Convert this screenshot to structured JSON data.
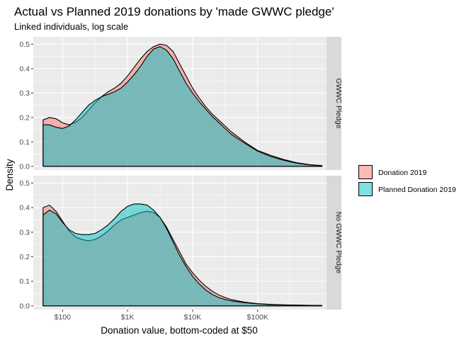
{
  "chart_data": {
    "type": "area",
    "title": "Actual vs Planned 2019 donations by 'made GWWC pledge'",
    "subtitle": "Linked individuals, log scale",
    "xlabel": "Donation value, bottom-coded at $50",
    "ylabel": "Density",
    "x_scale": "log10",
    "xlim_log10": [
      1.55,
      6.06
    ],
    "ylim": [
      -0.015,
      0.53
    ],
    "x_ticks": [
      {
        "log10": 2,
        "label": "$100"
      },
      {
        "log10": 3,
        "label": "$1K"
      },
      {
        "log10": 4,
        "label": "$10K"
      },
      {
        "log10": 5,
        "label": "$100K"
      }
    ],
    "y_ticks": [
      {
        "value": 0.0,
        "label": "0.0"
      },
      {
        "value": 0.1,
        "label": "0.1"
      },
      {
        "value": 0.2,
        "label": "0.2"
      },
      {
        "value": 0.3,
        "label": "0.3"
      },
      {
        "value": 0.4,
        "label": "0.4"
      },
      {
        "value": 0.5,
        "label": "0.5"
      }
    ],
    "legend": {
      "position": "right",
      "entries": [
        {
          "label": "Donation 2019",
          "color": "#F8766D"
        },
        {
          "label": "Planned Donation 2019",
          "color": "#00BFC4"
        }
      ]
    },
    "facets": [
      {
        "label": "GWWC Pledge",
        "series": [
          {
            "name": "Donation 2019",
            "color": "#F8766D",
            "x_log10": [
              1.7,
              1.8,
              1.9,
              2.0,
              2.1,
              2.2,
              2.3,
              2.4,
              2.5,
              2.6,
              2.7,
              2.8,
              2.9,
              3.0,
              3.1,
              3.2,
              3.3,
              3.4,
              3.5,
              3.6,
              3.7,
              3.8,
              3.9,
              4.0,
              4.1,
              4.2,
              4.3,
              4.4,
              4.5,
              4.6,
              4.8,
              5.0,
              5.2,
              5.4,
              5.6,
              5.8,
              5.99
            ],
            "y": [
              0.19,
              0.2,
              0.195,
              0.178,
              0.17,
              0.18,
              0.2,
              0.23,
              0.26,
              0.285,
              0.305,
              0.32,
              0.34,
              0.37,
              0.405,
              0.44,
              0.47,
              0.49,
              0.5,
              0.495,
              0.47,
              0.42,
              0.37,
              0.32,
              0.28,
              0.245,
              0.215,
              0.19,
              0.165,
              0.14,
              0.1,
              0.065,
              0.045,
              0.028,
              0.015,
              0.007,
              0.003
            ]
          },
          {
            "name": "Planned Donation 2019",
            "color": "#00BFC4",
            "x_log10": [
              1.7,
              1.8,
              1.9,
              2.0,
              2.1,
              2.2,
              2.3,
              2.4,
              2.5,
              2.6,
              2.7,
              2.8,
              2.9,
              3.0,
              3.1,
              3.2,
              3.3,
              3.4,
              3.5,
              3.6,
              3.7,
              3.8,
              3.9,
              4.0,
              4.1,
              4.2,
              4.3,
              4.4,
              4.5,
              4.6,
              4.8,
              5.0,
              5.2,
              5.4,
              5.6,
              5.8,
              5.99
            ],
            "y": [
              0.17,
              0.17,
              0.16,
              0.155,
              0.165,
              0.19,
              0.22,
              0.25,
              0.27,
              0.285,
              0.295,
              0.305,
              0.32,
              0.345,
              0.375,
              0.41,
              0.45,
              0.48,
              0.49,
              0.475,
              0.44,
              0.39,
              0.34,
              0.3,
              0.265,
              0.235,
              0.205,
              0.18,
              0.155,
              0.13,
              0.095,
              0.062,
              0.04,
              0.025,
              0.013,
              0.006,
              0.002
            ]
          }
        ]
      },
      {
        "label": "No GWWC Pledge",
        "series": [
          {
            "name": "Donation 2019",
            "color": "#F8766D",
            "x_log10": [
              1.7,
              1.8,
              1.9,
              2.0,
              2.1,
              2.2,
              2.3,
              2.4,
              2.5,
              2.6,
              2.7,
              2.8,
              2.9,
              3.0,
              3.1,
              3.2,
              3.3,
              3.4,
              3.5,
              3.6,
              3.7,
              3.8,
              3.9,
              4.0,
              4.1,
              4.2,
              4.3,
              4.4,
              4.5,
              4.6,
              4.8,
              5.0,
              5.2,
              5.4,
              5.6,
              5.8,
              5.99
            ],
            "y": [
              0.4,
              0.41,
              0.385,
              0.345,
              0.305,
              0.28,
              0.27,
              0.265,
              0.27,
              0.285,
              0.305,
              0.33,
              0.35,
              0.36,
              0.37,
              0.38,
              0.385,
              0.38,
              0.36,
              0.32,
              0.27,
              0.22,
              0.17,
              0.135,
              0.105,
              0.08,
              0.06,
              0.045,
              0.034,
              0.025,
              0.015,
              0.009,
              0.006,
              0.004,
              0.003,
              0.002,
              0.0015
            ]
          },
          {
            "name": "Planned Donation 2019",
            "color": "#00BFC4",
            "x_log10": [
              1.7,
              1.8,
              1.9,
              2.0,
              2.1,
              2.2,
              2.3,
              2.4,
              2.5,
              2.6,
              2.7,
              2.8,
              2.9,
              3.0,
              3.1,
              3.2,
              3.3,
              3.4,
              3.5,
              3.6,
              3.7,
              3.8,
              3.9,
              4.0,
              4.1,
              4.2,
              4.3,
              4.4,
              4.5,
              4.6,
              4.8,
              5.0,
              5.2,
              5.4,
              5.6,
              5.8,
              5.99
            ],
            "y": [
              0.37,
              0.39,
              0.375,
              0.34,
              0.31,
              0.295,
              0.29,
              0.29,
              0.295,
              0.31,
              0.33,
              0.355,
              0.385,
              0.405,
              0.415,
              0.415,
              0.41,
              0.39,
              0.36,
              0.315,
              0.26,
              0.205,
              0.16,
              0.12,
              0.09,
              0.065,
              0.047,
              0.034,
              0.026,
              0.02,
              0.013,
              0.008,
              0.005,
              0.004,
              0.003,
              0.002,
              0.0015
            ]
          }
        ]
      }
    ]
  }
}
